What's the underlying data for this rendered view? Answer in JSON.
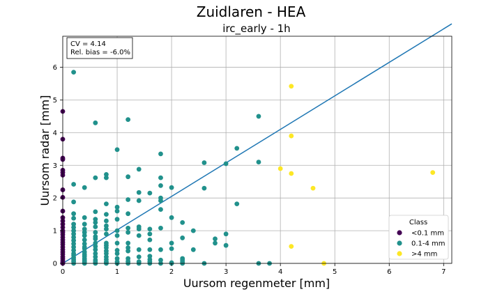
{
  "chart_data": {
    "type": "scatter",
    "suptitle": "Zuidlaren - HEA",
    "title": "irc_early - 1h",
    "xlabel": "Uursom regenmeter [mm]",
    "ylabel": "Uursom radar [mm]",
    "xlim": [
      0,
      7.15
    ],
    "ylim": [
      0,
      6.95
    ],
    "xticks": [
      "0",
      "1",
      "2",
      "3",
      "4",
      "5",
      "6",
      "7"
    ],
    "yticks": [
      "0",
      "1",
      "2",
      "3",
      "4",
      "5",
      "6"
    ],
    "grid": true,
    "stats": {
      "cv": "CV = 4.14",
      "bias": "Rel. bias = -6.0%"
    },
    "legend": {
      "title": "Class",
      "placement": "lower-right",
      "entries": [
        {
          "label": "<0.1 mm",
          "color": "#440154"
        },
        {
          "label": "0.1-4 mm",
          "color": "#21918c"
        },
        {
          "label": ">4 mm",
          "color": "#fde725"
        }
      ]
    },
    "fit_line": {
      "x": [
        0,
        7.15
      ],
      "y": [
        0,
        7.33
      ],
      "color": "#1f77b4"
    },
    "series": [
      {
        "name": "<0.1 mm",
        "color": "#440154",
        "x": [
          0,
          0,
          0,
          0,
          0,
          0,
          0,
          0,
          0,
          0,
          0,
          0,
          0,
          0,
          0,
          0,
          0,
          0,
          0,
          0,
          0,
          0,
          0,
          0,
          0,
          0,
          0,
          0,
          0,
          0
        ],
        "y": [
          4.65,
          3.8,
          3.22,
          3.18,
          2.85,
          2.78,
          2.7,
          2.25,
          2.02,
          1.6,
          1.4,
          1.3,
          1.2,
          1.1,
          1.0,
          0.95,
          0.88,
          0.8,
          0.72,
          0.65,
          0.58,
          0.5,
          0.42,
          0.35,
          0.28,
          0.2,
          0.14,
          0.08,
          0.03,
          0.0
        ]
      },
      {
        "name": "0.1-4 mm",
        "color": "#21918c",
        "x": [
          0.2,
          0.2,
          0.2,
          0.2,
          0.2,
          0.2,
          0.2,
          0.2,
          0.2,
          0.2,
          0.2,
          0.2,
          0.2,
          0.2,
          0.2,
          0.2,
          0.2,
          0.2,
          0.2,
          0.2,
          0.4,
          0.4,
          0.4,
          0.4,
          0.4,
          0.4,
          0.4,
          0.4,
          0.4,
          0.4,
          0.4,
          0.4,
          0.4,
          0.4,
          0.4,
          0.4,
          0.4,
          0.4,
          0.6,
          0.6,
          0.6,
          0.6,
          0.6,
          0.6,
          0.6,
          0.6,
          0.6,
          0.6,
          0.6,
          0.6,
          0.6,
          0.6,
          0.6,
          0.6,
          0.6,
          0.8,
          0.8,
          0.8,
          0.8,
          0.8,
          0.8,
          0.8,
          0.8,
          0.8,
          0.8,
          0.8,
          0.8,
          0.8,
          0.8,
          0.8,
          0.8,
          0.8,
          0.8,
          1.0,
          1.0,
          1.0,
          1.0,
          1.0,
          1.0,
          1.0,
          1.0,
          1.0,
          1.0,
          1.0,
          1.0,
          1.2,
          1.2,
          1.2,
          1.2,
          1.2,
          1.2,
          1.2,
          1.2,
          1.2,
          1.2,
          1.2,
          1.2,
          1.4,
          1.4,
          1.4,
          1.4,
          1.4,
          1.4,
          1.4,
          1.4,
          1.4,
          1.4,
          1.6,
          1.6,
          1.6,
          1.6,
          1.6,
          1.6,
          1.6,
          1.6,
          1.6,
          1.8,
          1.8,
          1.8,
          1.8,
          1.8,
          1.8,
          1.8,
          1.8,
          1.8,
          1.8,
          2.0,
          2.0,
          2.0,
          2.0,
          2.0,
          2.0,
          2.2,
          2.2,
          2.2,
          2.2,
          2.2,
          2.2,
          2.4,
          2.4,
          2.6,
          2.6,
          2.6,
          2.8,
          2.8,
          3.0,
          3.0,
          3.0,
          3.2,
          3.2,
          3.6,
          3.6,
          3.6,
          3.8
        ],
        "y": [
          5.85,
          2.42,
          1.88,
          1.52,
          1.38,
          1.2,
          1.1,
          1.0,
          0.9,
          0.8,
          0.7,
          0.6,
          0.5,
          0.4,
          0.3,
          0.25,
          0.18,
          0.12,
          0.06,
          0.0,
          2.32,
          1.4,
          1.2,
          1.05,
          0.95,
          0.85,
          0.72,
          0.6,
          0.5,
          0.45,
          0.35,
          0.28,
          0.22,
          0.15,
          0.1,
          0.05,
          0.02,
          0.0,
          4.3,
          2.62,
          1.58,
          1.35,
          1.25,
          1.12,
          0.95,
          0.82,
          0.62,
          0.52,
          0.42,
          0.3,
          0.2,
          0.1,
          0.0,
          0.75,
          0.04,
          2.72,
          2.62,
          1.82,
          1.5,
          1.3,
          1.15,
          1.05,
          0.9,
          0.62,
          0.55,
          0.48,
          0.38,
          0.3,
          0.2,
          0.12,
          0.05,
          0.02,
          0.0,
          3.48,
          1.72,
          1.6,
          1.35,
          1.0,
          0.85,
          0.62,
          0.4,
          0.3,
          0.15,
          0.05,
          0.0,
          4.4,
          2.65,
          1.95,
          1.52,
          1.08,
          0.95,
          0.62,
          0.48,
          0.38,
          0.15,
          0.06,
          0.0,
          2.88,
          2.17,
          1.92,
          1.12,
          1.05,
          0.85,
          0.42,
          0.2,
          0.05,
          0.0,
          2.15,
          1.05,
          0.9,
          0.72,
          0.42,
          0.22,
          0.12,
          0.05,
          0.0,
          3.35,
          2.62,
          2.38,
          2.0,
          1.92,
          1.65,
          1.08,
          0.42,
          0.1,
          0.0,
          2.32,
          1.4,
          0.62,
          0.45,
          0.02,
          0.0,
          1.25,
          0.78,
          0.15,
          0.1,
          0.04,
          0.0,
          1.0,
          0.42,
          3.08,
          2.3,
          0.0,
          0.75,
          0.62,
          3.05,
          0.9,
          0.55,
          3.52,
          1.82,
          4.5,
          3.1,
          0.0,
          0.0
        ]
      },
      {
        "name": ">4 mm",
        "color": "#fde725",
        "x": [
          4.2,
          4.2,
          4.0,
          4.2,
          4.6,
          4.2,
          4.8,
          6.8
        ],
        "y": [
          5.42,
          3.9,
          2.9,
          2.75,
          2.3,
          0.52,
          0.0,
          2.78
        ]
      }
    ]
  }
}
